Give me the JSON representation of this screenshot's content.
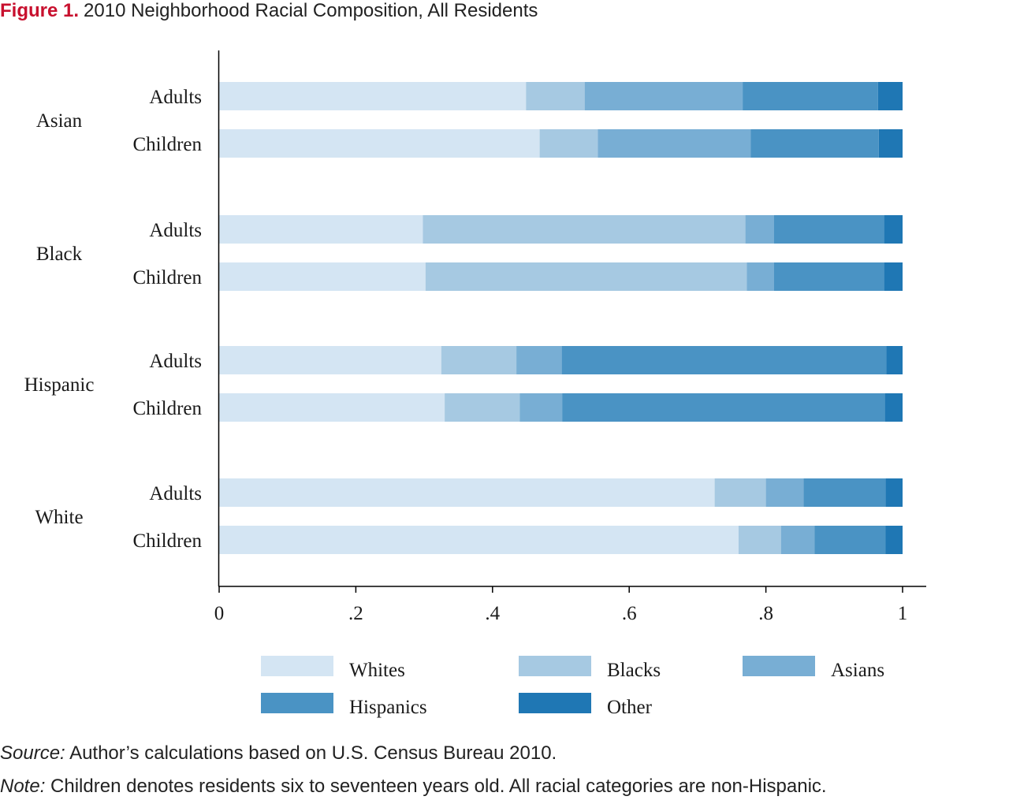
{
  "title": {
    "number": "Figure 1.",
    "text": "2010 Neighborhood Racial Composition, All Residents"
  },
  "source": {
    "label": "Source:",
    "text": "Author’s calculations based on U.S. Census Bureau 2010."
  },
  "note": {
    "label": "Note:",
    "text": "Children denotes residents six to seventeen years old. All racial categories are non-Hispanic."
  },
  "chart_data": {
    "type": "bar",
    "orientation": "horizontal",
    "stacked": true,
    "xlim": [
      0,
      1
    ],
    "xticks": [
      0,
      0.2,
      0.4,
      0.6,
      0.8,
      1
    ],
    "xtick_labels": [
      "0",
      ".2",
      ".4",
      ".6",
      ".8",
      "1"
    ],
    "grid": false,
    "legend_position": "bottom",
    "groups": [
      {
        "label": "Asian",
        "rows": [
          {
            "label": "Adults",
            "values": [
              0.449,
              0.086,
              0.231,
              0.198,
              0.036
            ]
          },
          {
            "label": "Children",
            "values": [
              0.469,
              0.085,
              0.224,
              0.187,
              0.035
            ]
          }
        ]
      },
      {
        "label": "Black",
        "rows": [
          {
            "label": "Adults",
            "values": [
              0.298,
              0.472,
              0.042,
              0.161,
              0.027
            ]
          },
          {
            "label": "Children",
            "values": [
              0.302,
              0.47,
              0.04,
              0.161,
              0.027
            ]
          }
        ]
      },
      {
        "label": "Hispanic",
        "rows": [
          {
            "label": "Adults",
            "values": [
              0.325,
              0.11,
              0.066,
              0.475,
              0.024
            ]
          },
          {
            "label": "Children",
            "values": [
              0.33,
              0.11,
              0.062,
              0.472,
              0.026
            ]
          }
        ]
      },
      {
        "label": "White",
        "rows": [
          {
            "label": "Adults",
            "values": [
              0.725,
              0.075,
              0.055,
              0.12,
              0.025
            ]
          },
          {
            "label": "Children",
            "values": [
              0.76,
              0.062,
              0.049,
              0.104,
              0.025
            ]
          }
        ]
      }
    ],
    "series": [
      {
        "name": "Whites",
        "color": "#d4e5f3"
      },
      {
        "name": "Blacks",
        "color": "#a6c9e2"
      },
      {
        "name": "Asians",
        "color": "#78aed4"
      },
      {
        "name": "Hispanics",
        "color": "#4a93c4"
      },
      {
        "name": "Other",
        "color": "#1f77b4"
      }
    ],
    "axis_color": "#000000"
  }
}
